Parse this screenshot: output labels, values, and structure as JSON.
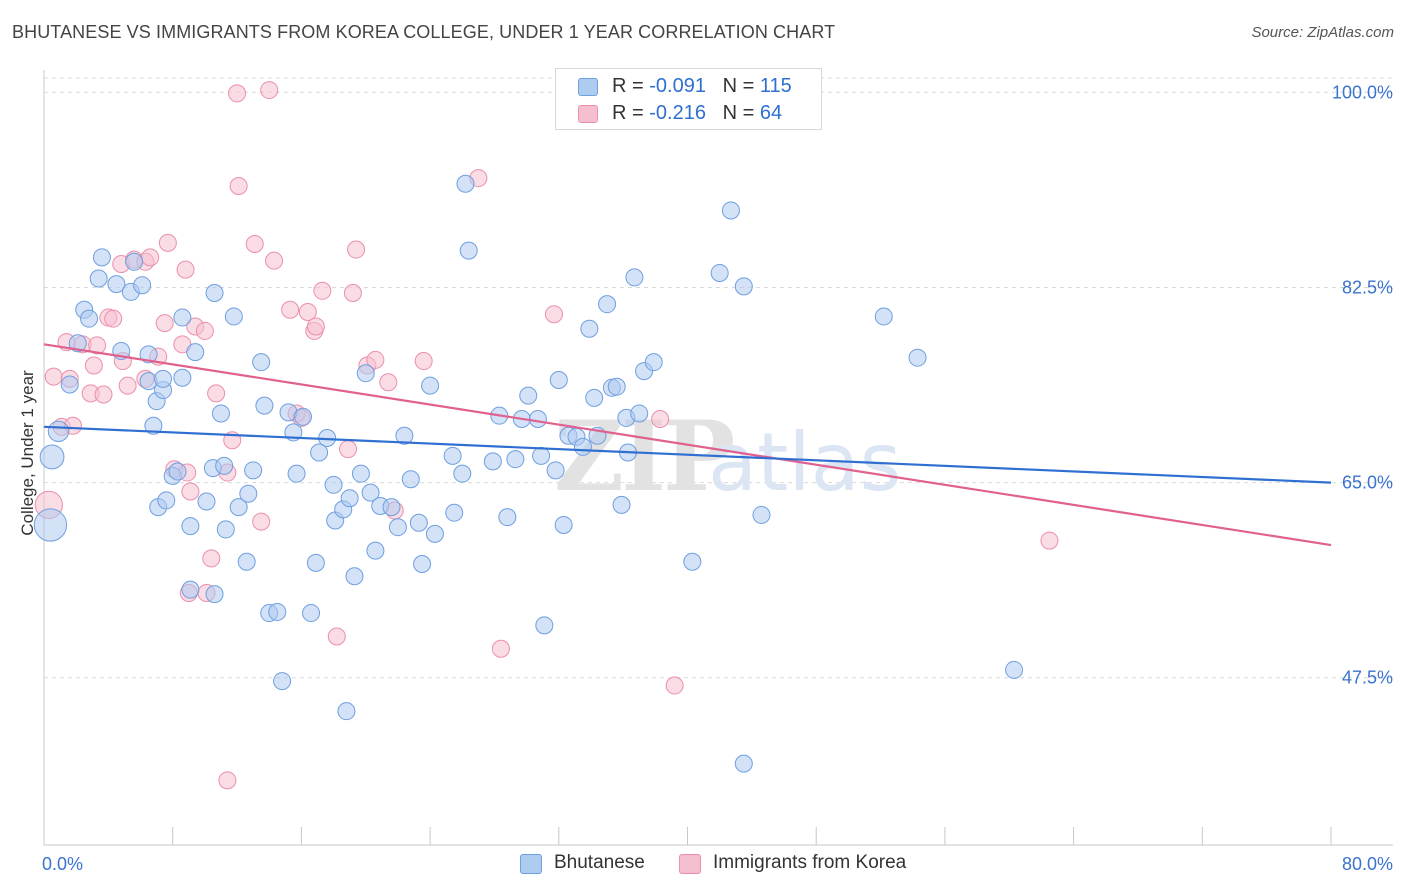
{
  "title": "BHUTANESE VS IMMIGRANTS FROM KOREA COLLEGE, UNDER 1 YEAR CORRELATION CHART",
  "source": "Source: ZipAtlas.com",
  "watermark": {
    "zip": "ZIP",
    "atlas": "atlas"
  },
  "legend": {
    "rows": [
      {
        "r_label": "R = ",
        "r_value": "-0.091",
        "n_label": "N = ",
        "n_value": "115"
      },
      {
        "r_label": "R = ",
        "r_value": "-0.216",
        "n_label": "N = ",
        "n_value": "64"
      }
    ]
  },
  "colors": {
    "blue_fill": "#aecbf0",
    "blue_stroke": "#6e9fe0",
    "blue_line": "#2f6fd1",
    "pink_fill": "#f6bfd0",
    "pink_stroke": "#ec8fab",
    "pink_line": "#e0608e",
    "axis_text": "#3a73d0",
    "grid": "#d9d9d9"
  },
  "chart_data": {
    "type": "scatter",
    "title": "BHUTANESE VS IMMIGRANTS FROM KOREA COLLEGE, UNDER 1 YEAR CORRELATION CHART",
    "xlabel": "",
    "ylabel": "College, Under 1 year",
    "xlim": [
      0,
      80
    ],
    "ylim": [
      32.5,
      102
    ],
    "x_ticks": [
      0,
      8,
      16,
      24,
      32,
      40,
      48,
      56,
      64,
      72,
      80
    ],
    "x_tick_labels": [
      {
        "value": 0,
        "label": "0.0%"
      },
      {
        "value": 80,
        "label": "80.0%"
      }
    ],
    "y_ticks": [
      {
        "value": 47.5,
        "label": "47.5%"
      },
      {
        "value": 65.0,
        "label": "65.0%"
      },
      {
        "value": 82.5,
        "label": "82.5%"
      },
      {
        "value": 100.0,
        "label": "100.0%"
      }
    ],
    "grid": true,
    "legend_position": "top-center",
    "series": [
      {
        "name": "Bhutanese",
        "color": "#6e9fe0",
        "trend": {
          "x": [
            0,
            80
          ],
          "y": [
            70.0,
            65.0
          ]
        },
        "points": [
          [
            0.4,
            61.2,
            1.9
          ],
          [
            0.5,
            67.3,
            1.4
          ],
          [
            0.9,
            69.6,
            1.2
          ],
          [
            1.6,
            73.8,
            1.0
          ],
          [
            2.1,
            77.5,
            1.0
          ],
          [
            2.5,
            80.5,
            1.0
          ],
          [
            2.8,
            79.7,
            1.0
          ],
          [
            3.4,
            83.3,
            1.0
          ],
          [
            3.6,
            85.2,
            1.0
          ],
          [
            4.8,
            76.8,
            1.0
          ],
          [
            4.5,
            82.8,
            1.0
          ],
          [
            5.4,
            82.1,
            1.0
          ],
          [
            5.6,
            84.8,
            1.0
          ],
          [
            6.1,
            82.7,
            1.0
          ],
          [
            6.5,
            74.1,
            1.0
          ],
          [
            6.8,
            70.1,
            1.0
          ],
          [
            6.5,
            76.5,
            1.0
          ],
          [
            7.1,
            62.8,
            1.0
          ],
          [
            7.0,
            72.3,
            1.0
          ],
          [
            7.4,
            73.3,
            1.0
          ],
          [
            7.4,
            74.3,
            1.0
          ],
          [
            7.6,
            63.4,
            1.0
          ],
          [
            8.0,
            65.6,
            1.0
          ],
          [
            8.3,
            66.0,
            1.0
          ],
          [
            8.6,
            74.4,
            1.0
          ],
          [
            8.6,
            79.8,
            1.0
          ],
          [
            9.1,
            61.1,
            1.0
          ],
          [
            9.4,
            76.7,
            1.0
          ],
          [
            9.1,
            55.4,
            1.0
          ],
          [
            10.1,
            63.3,
            1.0
          ],
          [
            10.5,
            66.3,
            1.0
          ],
          [
            10.6,
            82.0,
            1.0
          ],
          [
            10.6,
            55.0,
            1.0
          ],
          [
            11.0,
            71.2,
            1.0
          ],
          [
            11.2,
            66.5,
            1.0
          ],
          [
            11.3,
            60.8,
            1.0
          ],
          [
            11.8,
            79.9,
            1.0
          ],
          [
            12.1,
            62.8,
            1.0
          ],
          [
            12.7,
            64.0,
            1.0
          ],
          [
            12.6,
            57.9,
            1.0
          ],
          [
            13.0,
            66.1,
            1.0
          ],
          [
            13.5,
            75.8,
            1.0
          ],
          [
            13.7,
            71.9,
            1.0
          ],
          [
            14.0,
            53.3,
            1.0
          ],
          [
            14.5,
            53.4,
            1.0
          ],
          [
            14.8,
            47.2,
            1.0
          ],
          [
            15.2,
            71.3,
            1.0
          ],
          [
            15.5,
            69.5,
            1.0
          ],
          [
            15.7,
            65.8,
            1.0
          ],
          [
            16.1,
            70.9,
            1.0
          ],
          [
            16.6,
            53.3,
            1.0
          ],
          [
            16.9,
            57.8,
            1.0
          ],
          [
            17.1,
            67.7,
            1.0
          ],
          [
            17.6,
            69.0,
            1.0
          ],
          [
            18.0,
            64.8,
            1.0
          ],
          [
            18.1,
            61.6,
            1.0
          ],
          [
            18.6,
            62.6,
            1.0
          ],
          [
            18.8,
            44.5,
            1.0
          ],
          [
            19.0,
            63.6,
            1.0
          ],
          [
            19.3,
            56.6,
            1.0
          ],
          [
            19.7,
            65.8,
            1.0
          ],
          [
            20.0,
            74.8,
            1.0
          ],
          [
            20.3,
            64.1,
            1.0
          ],
          [
            20.6,
            58.9,
            1.0
          ],
          [
            20.9,
            62.9,
            1.0
          ],
          [
            21.6,
            62.8,
            1.0
          ],
          [
            22.0,
            61.0,
            1.0
          ],
          [
            22.4,
            69.2,
            1.0
          ],
          [
            22.8,
            65.3,
            1.0
          ],
          [
            23.3,
            61.4,
            1.0
          ],
          [
            23.5,
            57.7,
            1.0
          ],
          [
            24.0,
            73.7,
            1.0
          ],
          [
            24.3,
            60.4,
            1.0
          ],
          [
            25.4,
            67.4,
            1.0
          ],
          [
            25.5,
            62.3,
            1.0
          ],
          [
            26.0,
            65.8,
            1.0
          ],
          [
            26.2,
            91.8,
            1.0
          ],
          [
            26.4,
            85.8,
            1.0
          ],
          [
            27.9,
            66.9,
            1.0
          ],
          [
            28.3,
            71.0,
            1.0
          ],
          [
            28.8,
            61.9,
            1.0
          ],
          [
            29.3,
            67.1,
            1.0
          ],
          [
            29.7,
            70.7,
            1.0
          ],
          [
            30.1,
            72.8,
            1.0
          ],
          [
            30.7,
            70.7,
            1.0
          ],
          [
            30.9,
            67.4,
            1.0
          ],
          [
            31.8,
            66.1,
            1.0
          ],
          [
            31.1,
            52.2,
            1.0
          ],
          [
            32.0,
            74.2,
            1.0
          ],
          [
            32.3,
            61.2,
            1.0
          ],
          [
            32.6,
            69.2,
            1.0
          ],
          [
            33.1,
            69.1,
            1.0
          ],
          [
            33.5,
            68.2,
            1.0
          ],
          [
            33.9,
            78.8,
            1.0
          ],
          [
            34.2,
            72.6,
            1.0
          ],
          [
            34.4,
            69.2,
            1.0
          ],
          [
            35.0,
            81.0,
            1.0
          ],
          [
            35.3,
            73.5,
            1.0
          ],
          [
            35.6,
            73.6,
            1.0
          ],
          [
            35.9,
            63.0,
            1.0
          ],
          [
            36.2,
            70.8,
            1.0
          ],
          [
            36.3,
            67.7,
            1.0
          ],
          [
            36.7,
            83.4,
            1.0
          ],
          [
            37.0,
            71.2,
            1.0
          ],
          [
            37.3,
            75.0,
            1.0
          ],
          [
            37.9,
            75.8,
            1.0
          ],
          [
            40.3,
            57.9,
            1.0
          ],
          [
            42.0,
            83.8,
            1.0
          ],
          [
            42.7,
            89.4,
            1.0
          ],
          [
            43.5,
            82.6,
            1.0
          ],
          [
            43.5,
            39.8,
            1.0
          ],
          [
            44.6,
            62.1,
            1.0
          ],
          [
            52.2,
            79.9,
            1.0
          ],
          [
            54.3,
            76.2,
            1.0
          ],
          [
            60.3,
            48.2,
            1.0
          ]
        ]
      },
      {
        "name": "Immigrants from Korea",
        "color": "#ec8fab",
        "trend": {
          "x": [
            0,
            80
          ],
          "y": [
            77.4,
            59.4
          ]
        },
        "points": [
          [
            0.3,
            63.0,
            1.6
          ],
          [
            0.6,
            74.5,
            1.0
          ],
          [
            1.1,
            70.0,
            1.0
          ],
          [
            1.4,
            77.6,
            1.0
          ],
          [
            1.6,
            74.3,
            1.0
          ],
          [
            1.8,
            70.1,
            1.0
          ],
          [
            2.4,
            77.4,
            1.0
          ],
          [
            2.9,
            73.0,
            1.0
          ],
          [
            3.1,
            75.5,
            1.0
          ],
          [
            3.3,
            77.3,
            1.0
          ],
          [
            3.7,
            72.9,
            1.0
          ],
          [
            4.0,
            79.8,
            1.0
          ],
          [
            4.3,
            79.7,
            1.0
          ],
          [
            4.8,
            84.6,
            1.0
          ],
          [
            4.9,
            75.9,
            1.0
          ],
          [
            5.2,
            73.7,
            1.0
          ],
          [
            5.6,
            85.0,
            1.0
          ],
          [
            6.3,
            74.3,
            1.0
          ],
          [
            6.3,
            84.8,
            1.0
          ],
          [
            6.6,
            85.2,
            1.0
          ],
          [
            7.1,
            76.3,
            1.0
          ],
          [
            7.5,
            79.3,
            1.0
          ],
          [
            7.7,
            86.5,
            1.0
          ],
          [
            8.1,
            66.2,
            1.0
          ],
          [
            8.6,
            77.4,
            1.0
          ],
          [
            8.8,
            84.1,
            1.0
          ],
          [
            8.9,
            65.9,
            1.0
          ],
          [
            9.1,
            64.2,
            1.0
          ],
          [
            9.4,
            79.0,
            1.0
          ],
          [
            9.0,
            55.1,
            1.0
          ],
          [
            10.0,
            78.6,
            1.0
          ],
          [
            10.1,
            55.1,
            1.0
          ],
          [
            10.4,
            58.2,
            1.0
          ],
          [
            10.7,
            73.0,
            1.0
          ],
          [
            11.4,
            65.9,
            1.0
          ],
          [
            11.4,
            38.3,
            1.0
          ],
          [
            11.7,
            68.8,
            1.0
          ],
          [
            12.1,
            91.6,
            1.0
          ],
          [
            12.0,
            99.9,
            1.0
          ],
          [
            13.1,
            86.4,
            1.0
          ],
          [
            13.5,
            61.5,
            1.0
          ],
          [
            14.0,
            100.2,
            1.0
          ],
          [
            14.3,
            84.9,
            1.0
          ],
          [
            15.3,
            80.5,
            1.0
          ],
          [
            15.7,
            71.2,
            1.0
          ],
          [
            16.0,
            70.8,
            1.0
          ],
          [
            16.4,
            80.3,
            1.0
          ],
          [
            16.8,
            78.6,
            1.0
          ],
          [
            16.9,
            79.0,
            1.0
          ],
          [
            17.3,
            82.2,
            1.0
          ],
          [
            18.2,
            51.2,
            1.0
          ],
          [
            18.9,
            68.0,
            1.0
          ],
          [
            19.2,
            82.0,
            1.0
          ],
          [
            19.4,
            85.9,
            1.0
          ],
          [
            20.1,
            75.5,
            1.0
          ],
          [
            20.6,
            76.0,
            1.0
          ],
          [
            21.4,
            74.0,
            1.0
          ],
          [
            21.8,
            62.5,
            1.0
          ],
          [
            23.6,
            75.9,
            1.0
          ],
          [
            27.0,
            92.3,
            1.0
          ],
          [
            28.4,
            50.1,
            1.0
          ],
          [
            31.7,
            80.1,
            1.0
          ],
          [
            38.3,
            70.7,
            1.0
          ],
          [
            39.2,
            46.8,
            1.0
          ],
          [
            62.5,
            59.8,
            1.0
          ]
        ]
      }
    ]
  }
}
